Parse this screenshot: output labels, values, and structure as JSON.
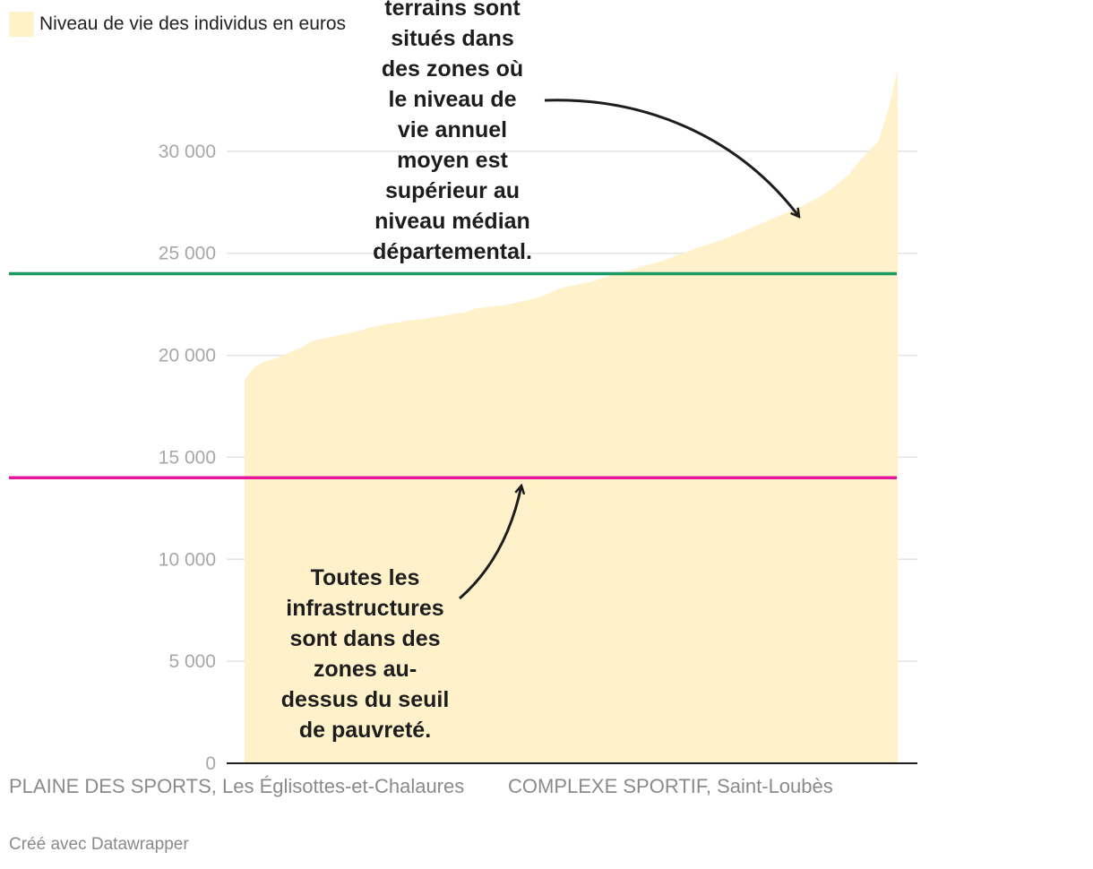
{
  "legend": {
    "label": "Niveau de vie des individus en euros",
    "color": "#fff1c9"
  },
  "annotations": {
    "top": [
      "terrains sont",
      "situés dans",
      "des zones où",
      "le niveau de",
      "vie annuel",
      "moyen est",
      "supérieur au",
      "niveau médian",
      "départemental."
    ],
    "bottom": [
      "Toutes les",
      "infrastructures",
      "sont dans des",
      "zones au-",
      "dessus du seuil",
      "de pauvreté."
    ]
  },
  "x_labels": {
    "left": "PLAINE DES SPORTS, Les Églisottes-et-Chalaures",
    "right": "COMPLEXE SPORTIF, Saint-Loubès"
  },
  "credit": "Créé avec Datawrapper",
  "chart_data": {
    "type": "area",
    "ylim": [
      0,
      35000
    ],
    "y_ticks": [
      {
        "value": 0,
        "label": "0"
      },
      {
        "value": 5000,
        "label": "5 000"
      },
      {
        "value": 10000,
        "label": "10 000"
      },
      {
        "value": 15000,
        "label": "15 000"
      },
      {
        "value": 20000,
        "label": "20 000"
      },
      {
        "value": 25000,
        "label": "25 000"
      },
      {
        "value": 30000,
        "label": "30 000"
      }
    ],
    "reference_lines": [
      {
        "value": 24000,
        "color": "#1a9a62"
      },
      {
        "value": 14000,
        "color": "#e5169b"
      }
    ],
    "series": [
      {
        "color": "#fff1c9",
        "values": [
          18800,
          19400,
          19700,
          19800,
          20000,
          20200,
          20400,
          20700,
          20800,
          20900,
          21000,
          21100,
          21200,
          21350,
          21450,
          21550,
          21600,
          21700,
          21750,
          21800,
          21900,
          21950,
          22050,
          22100,
          22300,
          22350,
          22400,
          22450,
          22550,
          22650,
          22750,
          22900,
          23100,
          23300,
          23400,
          23500,
          23600,
          23750,
          23900,
          24050,
          24150,
          24300,
          24450,
          24550,
          24700,
          24900,
          25050,
          25250,
          25400,
          25550,
          25700,
          25900,
          26100,
          26300,
          26500,
          26700,
          26900,
          27100,
          27300,
          27550,
          27800,
          28100,
          28500,
          28900,
          29500,
          30000,
          30500,
          32000,
          34000
        ]
      }
    ]
  }
}
